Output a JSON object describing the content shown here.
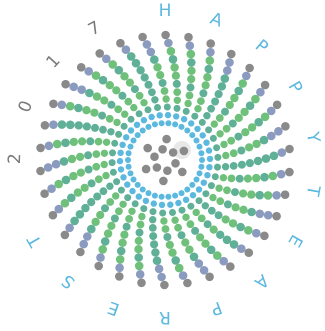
{
  "ring_text": [
    "H",
    "A",
    "P",
    "P",
    "Y",
    "T",
    "E",
    "A",
    "P",
    "R",
    "E",
    "S",
    "T",
    "2",
    "0",
    "1",
    "7"
  ],
  "colors": {
    "background": "#ffffff",
    "letter_blue": "#5bb8df",
    "letter_gray": "#7a7a7a",
    "dot_gray": "#8a8a8a",
    "dot_blue": "#5bb8df",
    "dot_green": "#6fc07a",
    "dot_teal": "#5fb097",
    "dot_slate": "#8b9bc0",
    "center_highlight": "#e8e8e8"
  },
  "logo": {
    "name": "spiral-dot-emblem"
  }
}
